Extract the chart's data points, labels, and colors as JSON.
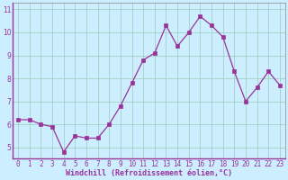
{
  "x": [
    0,
    1,
    2,
    3,
    4,
    5,
    6,
    7,
    8,
    9,
    10,
    11,
    12,
    13,
    14,
    15,
    16,
    17,
    18,
    19,
    20,
    21,
    22,
    23
  ],
  "y": [
    6.2,
    6.2,
    6.0,
    5.9,
    4.8,
    5.5,
    5.4,
    5.4,
    6.0,
    6.8,
    7.8,
    8.8,
    9.1,
    10.3,
    9.4,
    10.0,
    10.7,
    10.3,
    9.8,
    8.3,
    7.0,
    7.6,
    8.3,
    7.7
  ],
  "line_color": "#993399",
  "marker_color": "#993399",
  "bg_color": "#cceeff",
  "grid_color": "#99ccbb",
  "xlabel": "Windchill (Refroidissement éolien,°C)",
  "xlabel_color": "#993399",
  "tick_color": "#993399",
  "ylim": [
    4.5,
    11.3
  ],
  "yticks": [
    5,
    6,
    7,
    8,
    9,
    10,
    11
  ],
  "xlim": [
    -0.5,
    23.5
  ],
  "tick_fontsize": 5.5,
  "xlabel_fontsize": 6.0
}
